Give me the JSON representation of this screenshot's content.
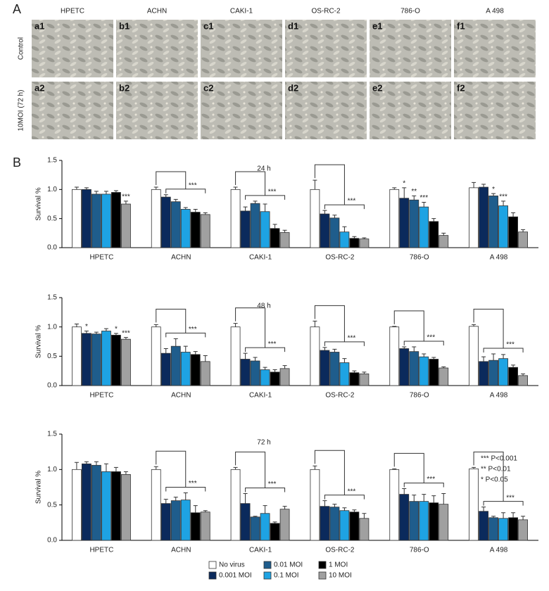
{
  "panel_a": {
    "label": "A",
    "columns": [
      "HPETC",
      "ACHN",
      "CAKI-1",
      "OS-RC-2",
      "786-O",
      "A 498"
    ],
    "rows": [
      "Control",
      "10MOI (72 h)"
    ],
    "tiles": [
      [
        "a1",
        "b1",
        "c1",
        "d1",
        "e1",
        "f1"
      ],
      [
        "a2",
        "b2",
        "c2",
        "d2",
        "e2",
        "f2"
      ]
    ]
  },
  "panel_b_label": "B",
  "notes": [
    "*** P<0.001",
    "** P<0.01",
    "* P<0.05"
  ],
  "chart_data": [
    {
      "type": "bar",
      "title": "24 h",
      "y_label": "Survival %",
      "categories": [
        "HPETC",
        "ACHN",
        "CAKI-1",
        "OS-RC-2",
        "786-O",
        "A 498"
      ],
      "ylim": [
        0,
        1.5
      ],
      "yticks": [
        {
          "value": 0,
          "label": "0.0"
        },
        0.5,
        {
          "value": 1,
          "label": "1.0"
        },
        1.5
      ],
      "series": [
        {
          "name": "No virus",
          "color": "#ffffff",
          "values": [
            1.0,
            1.0,
            1.0,
            1.0,
            1.0,
            1.03
          ],
          "errors": [
            0.04,
            0.04,
            0.04,
            0.16,
            0.03,
            0.09
          ]
        },
        {
          "name": "0.001 MOI",
          "color": "#0b2a5c",
          "values": [
            1.0,
            0.87,
            0.63,
            0.58,
            0.85,
            1.04
          ],
          "errors": [
            0.03,
            0.04,
            0.07,
            0.06,
            0.18,
            0.05
          ]
        },
        {
          "name": "0.01 MOI",
          "color": "#1f5d8c",
          "values": [
            0.92,
            0.79,
            0.76,
            0.51,
            0.82,
            0.89
          ],
          "errors": [
            0.05,
            0.04,
            0.04,
            0.05,
            0.07,
            0.04
          ]
        },
        {
          "name": "0.1 MOI",
          "color": "#1ea3e3",
          "values": [
            0.92,
            0.66,
            0.62,
            0.27,
            0.7,
            0.72
          ],
          "errors": [
            0.05,
            0.03,
            0.13,
            0.09,
            0.08,
            0.08
          ]
        },
        {
          "name": "1 MOI",
          "color": "#000000",
          "values": [
            0.95,
            0.61,
            0.33,
            0.16,
            0.45,
            0.53
          ],
          "errors": [
            0.03,
            0.05,
            0.07,
            0.03,
            0.05,
            0.07
          ]
        },
        {
          "name": "10 MOI",
          "color": "#a0a0a0",
          "values": [
            0.75,
            0.57,
            0.26,
            0.15,
            0.21,
            0.27
          ],
          "errors": [
            0.05,
            0.03,
            0.04,
            0.02,
            0.04,
            0.04
          ]
        }
      ],
      "brackets": [
        {
          "category": "ACHN",
          "label": "***"
        },
        {
          "category": "CAKI-1",
          "label": "***"
        },
        {
          "category": "OS-RC-2",
          "label": "***"
        }
      ],
      "bar_stars": [
        {
          "category": "HPETC",
          "series": "10 MOI",
          "label": "***"
        },
        {
          "category": "786-O",
          "series": "0.001 MOI",
          "label": "*"
        },
        {
          "category": "786-O",
          "series": "0.01 MOI",
          "label": "**"
        },
        {
          "category": "786-O",
          "series": "0.1 MOI",
          "label": "***"
        },
        {
          "category": "A 498",
          "series": "0.01 MOI",
          "label": "*"
        },
        {
          "category": "A 498",
          "series": "0.1 MOI",
          "label": "***"
        }
      ]
    },
    {
      "type": "bar",
      "title": "48 h",
      "y_label": "Survival %",
      "categories": [
        "HPETC",
        "ACHN",
        "CAKI-1",
        "OS-RC-2",
        "786-O",
        "A 498"
      ],
      "ylim": [
        0,
        1.5
      ],
      "yticks": [
        {
          "value": 0,
          "label": "0.0"
        },
        0.5,
        {
          "value": 1,
          "label": "1.0"
        },
        1.5
      ],
      "series": [
        {
          "name": "No virus",
          "color": "#ffffff",
          "values": [
            1.0,
            1.0,
            1.0,
            1.0,
            1.0,
            1.01
          ],
          "errors": [
            0.05,
            0.04,
            0.06,
            0.1,
            0.01,
            0.03
          ]
        },
        {
          "name": "0.001 MOI",
          "color": "#0b2a5c",
          "values": [
            0.89,
            0.55,
            0.45,
            0.6,
            0.63,
            0.41
          ],
          "errors": [
            0.04,
            0.08,
            0.1,
            0.05,
            0.03,
            0.08
          ]
        },
        {
          "name": "0.01 MOI",
          "color": "#1f5d8c",
          "values": [
            0.88,
            0.67,
            0.42,
            0.57,
            0.58,
            0.43
          ],
          "errors": [
            0.03,
            0.13,
            0.06,
            0.05,
            0.08,
            0.11
          ]
        },
        {
          "name": "0.1 MOI",
          "color": "#1ea3e3",
          "values": [
            0.93,
            0.57,
            0.27,
            0.39,
            0.49,
            0.46
          ],
          "errors": [
            0.04,
            0.1,
            0.04,
            0.07,
            0.05,
            0.07
          ]
        },
        {
          "name": "1 MOI",
          "color": "#000000",
          "values": [
            0.86,
            0.53,
            0.23,
            0.22,
            0.45,
            0.31
          ],
          "errors": [
            0.03,
            0.05,
            0.04,
            0.03,
            0.03,
            0.04
          ]
        },
        {
          "name": "10 MOI",
          "color": "#a0a0a0",
          "values": [
            0.79,
            0.41,
            0.29,
            0.2,
            0.3,
            0.17
          ],
          "errors": [
            0.03,
            0.1,
            0.05,
            0.03,
            0.02,
            0.03
          ]
        }
      ],
      "brackets": [
        {
          "category": "ACHN",
          "label": "***"
        },
        {
          "category": "CAKI-1",
          "label": "***"
        },
        {
          "category": "OS-RC-2",
          "label": "***"
        },
        {
          "category": "786-O",
          "label": "***"
        },
        {
          "category": "A 498",
          "label": "***"
        }
      ],
      "bar_stars": [
        {
          "category": "HPETC",
          "series": "0.001 MOI",
          "label": "*"
        },
        {
          "category": "HPETC",
          "series": "1 MOI",
          "label": "*"
        },
        {
          "category": "HPETC",
          "series": "10 MOI",
          "label": "***"
        }
      ]
    },
    {
      "type": "bar",
      "title": "72 h",
      "y_label": "Survival %",
      "categories": [
        "HPETC",
        "ACHN",
        "CAKI-1",
        "OS-RC-2",
        "786-O",
        "A 498"
      ],
      "ylim": [
        0,
        1.5
      ],
      "yticks": [
        {
          "value": 0,
          "label": "0.0"
        },
        0.5,
        {
          "value": 1,
          "label": "1.0"
        },
        1.5
      ],
      "series": [
        {
          "name": "No virus",
          "color": "#ffffff",
          "values": [
            1.0,
            1.0,
            1.0,
            1.0,
            1.0,
            1.01
          ],
          "errors": [
            0.1,
            0.04,
            0.03,
            0.05,
            0.01,
            0.02
          ]
        },
        {
          "name": "0.001 MOI",
          "color": "#0b2a5c",
          "values": [
            1.08,
            0.52,
            0.52,
            0.48,
            0.65,
            0.41
          ],
          "errors": [
            0.03,
            0.06,
            0.14,
            0.08,
            0.08,
            0.06
          ]
        },
        {
          "name": "0.01 MOI",
          "color": "#1f5d8c",
          "values": [
            1.06,
            0.56,
            0.33,
            0.47,
            0.55,
            0.32
          ],
          "errors": [
            0.05,
            0.05,
            0.01,
            0.04,
            0.09,
            0.02
          ]
        },
        {
          "name": "0.1 MOI",
          "color": "#1ea3e3",
          "values": [
            0.97,
            0.57,
            0.38,
            0.42,
            0.55,
            0.31
          ],
          "errors": [
            0.11,
            0.1,
            0.11,
            0.04,
            0.1,
            0.08
          ]
        },
        {
          "name": "1 MOI",
          "color": "#000000",
          "values": [
            0.97,
            0.39,
            0.24,
            0.4,
            0.53,
            0.32
          ],
          "errors": [
            0.06,
            0.1,
            0.02,
            0.03,
            0.1,
            0.07
          ]
        },
        {
          "name": "10 MOI",
          "color": "#a0a0a0",
          "values": [
            0.93,
            0.4,
            0.44,
            0.31,
            0.51,
            0.29
          ],
          "errors": [
            0.04,
            0.02,
            0.04,
            0.07,
            0.15,
            0.05
          ]
        }
      ],
      "brackets": [
        {
          "category": "ACHN",
          "label": "***"
        },
        {
          "category": "CAKI-1",
          "label": "***"
        },
        {
          "category": "OS-RC-2",
          "label": "***"
        },
        {
          "category": "786-O",
          "label": "***"
        },
        {
          "category": "A 498",
          "label": "***"
        }
      ],
      "bar_stars": []
    }
  ]
}
